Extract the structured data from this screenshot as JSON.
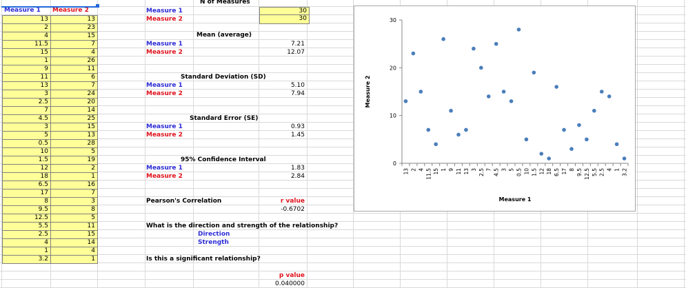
{
  "colors": {
    "accent_blue": "#2b2bd6",
    "accent_red": "#e0101a",
    "data_fill": "#ffff99",
    "point": "#4a7ebb"
  },
  "table": {
    "headers": [
      "Measure 1",
      "Measure 2"
    ],
    "rows": [
      [
        "13",
        "13"
      ],
      [
        "2",
        "23"
      ],
      [
        "4",
        "15"
      ],
      [
        "11.5",
        "7"
      ],
      [
        "15",
        "4"
      ],
      [
        "1",
        "26"
      ],
      [
        "9",
        "11"
      ],
      [
        "11",
        "6"
      ],
      [
        "13",
        "7"
      ],
      [
        "3",
        "24"
      ],
      [
        "2.5",
        "20"
      ],
      [
        "7",
        "14"
      ],
      [
        "4.5",
        "25"
      ],
      [
        "3",
        "15"
      ],
      [
        "5",
        "13"
      ],
      [
        "0.5",
        "28"
      ],
      [
        "10",
        "5"
      ],
      [
        "1.5",
        "19"
      ],
      [
        "12",
        "2"
      ],
      [
        "18",
        "1"
      ],
      [
        "6.5",
        "16"
      ],
      [
        "17",
        "7"
      ],
      [
        "8",
        "3"
      ],
      [
        "9.5",
        "8"
      ],
      [
        "12.5",
        "5"
      ],
      [
        "5.5",
        "11"
      ],
      [
        "2.5",
        "15"
      ],
      [
        "4",
        "14"
      ],
      [
        "1",
        "4"
      ],
      [
        "3.2",
        "1"
      ]
    ]
  },
  "stats": {
    "n_title": "N of Measures",
    "n_m1_label": "Measure 1",
    "n_m1_value": "30",
    "n_m2_label": "Measure 2",
    "n_m2_value": "30",
    "mean_title": "Mean (average)",
    "mean_m1_label": "Measure 1",
    "mean_m1_value": "7.21",
    "mean_m2_label": "Measure 2",
    "mean_m2_value": "12.07",
    "sd_title": "Standard Deviation (SD)",
    "sd_m1_label": "Measure 1",
    "sd_m1_value": "5.10",
    "sd_m2_label": "Measure 2",
    "sd_m2_value": "7.94",
    "se_title": "Standard Error (SE)",
    "se_m1_label": "Measure 1",
    "se_m1_value": "0.93",
    "se_m2_label": "Measure 2",
    "se_m2_value": "1.45",
    "ci_title": "95% Confidence Interval",
    "ci_m1_label": "Measure 1",
    "ci_m1_value": "1.83",
    "ci_m2_label": "Measure 2",
    "ci_m2_value": "2.84",
    "pearson_label": "Pearson's Correlation",
    "r_label": "r value",
    "r_value": "-0.6702",
    "question1": "What is the direction and strength of the relationship?",
    "direction_label": "Direction",
    "strength_label": "Strength",
    "question2": "Is this a significant relationship?",
    "p_label": "p value",
    "p_value": "0.040000"
  },
  "chart_data": {
    "type": "scatter",
    "xlabel": "Measure 1",
    "ylabel": "Measure 2",
    "categories": [
      "13",
      "2",
      "4",
      "11.5",
      "15",
      "1",
      "9",
      "11",
      "13",
      "3",
      "2.5",
      "7",
      "4.5",
      "3",
      "5",
      "0.5",
      "10",
      "1.5",
      "12",
      "18",
      "6.5",
      "17",
      "8",
      "9.5",
      "12.5",
      "5.5",
      "2.5",
      "4",
      "1",
      "3.2"
    ],
    "values": [
      13,
      23,
      15,
      7,
      4,
      26,
      11,
      6,
      7,
      24,
      20,
      14,
      25,
      15,
      13,
      28,
      5,
      19,
      2,
      1,
      16,
      7,
      3,
      8,
      5,
      11,
      15,
      14,
      4,
      1
    ],
    "ylim": [
      0,
      30
    ],
    "yticks": [
      0,
      10,
      20,
      30
    ],
    "grid": false
  }
}
